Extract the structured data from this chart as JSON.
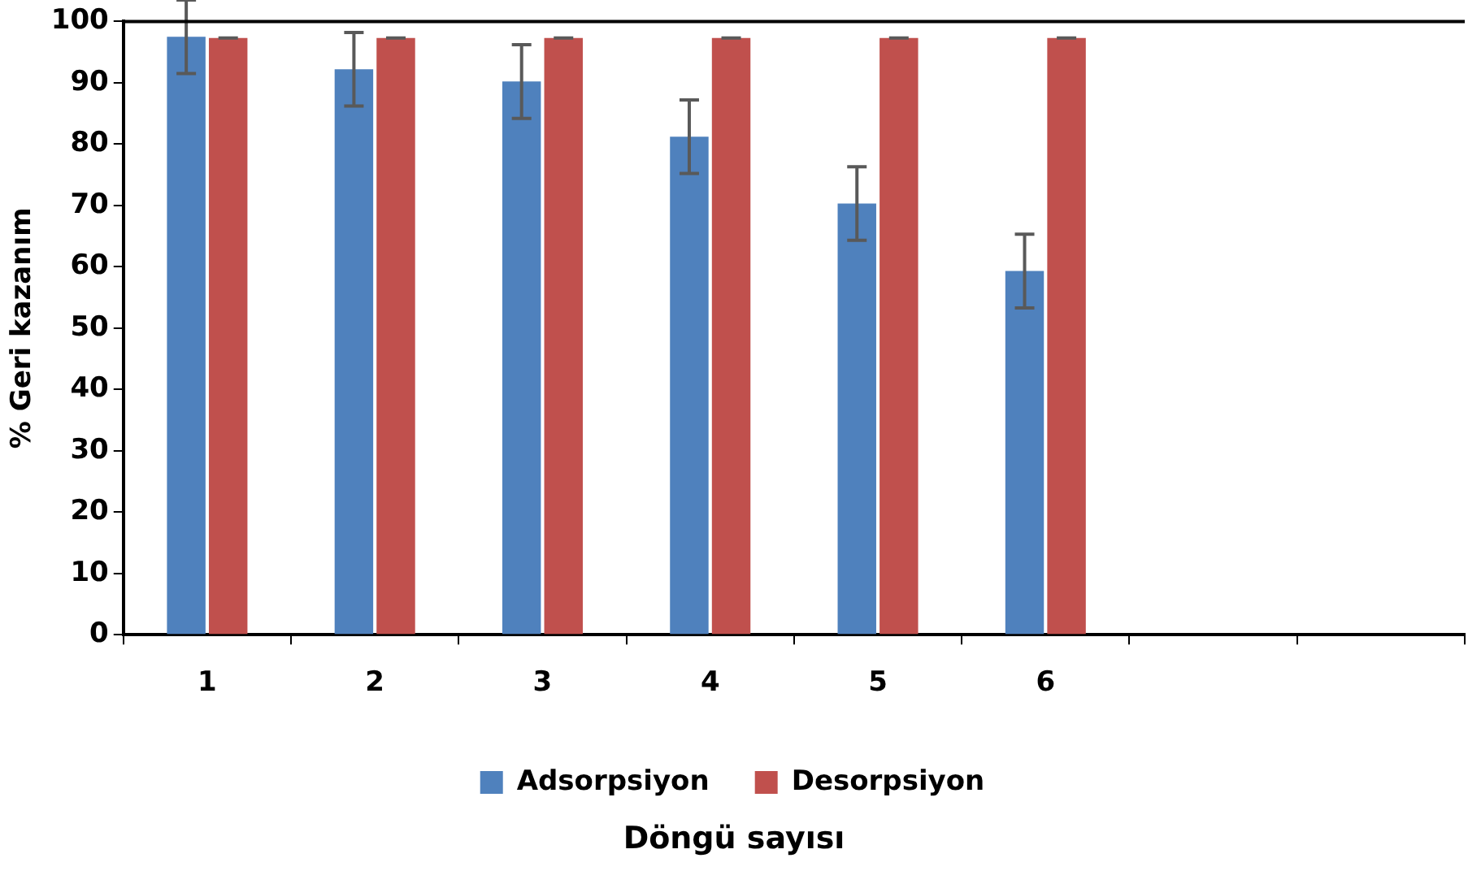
{
  "chart_data": {
    "type": "bar",
    "xlabel": "Döngü sayısı",
    "ylabel": "% Geri kazanım",
    "categories": [
      "1",
      "2",
      "3",
      "4",
      "5",
      "6",
      null,
      null
    ],
    "series": [
      {
        "name": "Adsorpsiyon",
        "color": "#4f81bd",
        "values": [
          97.5,
          92.2,
          90.2,
          81.2,
          70.3,
          59.3,
          null,
          null
        ],
        "errors": [
          6,
          6,
          6,
          6,
          6,
          6,
          null,
          null
        ]
      },
      {
        "name": "Desorpsiyon",
        "color": "#c0504d",
        "values": [
          97.3,
          97.3,
          97.3,
          97.3,
          97.3,
          97.3,
          null,
          null
        ],
        "errors": [
          0,
          0,
          0,
          0,
          0,
          0,
          null,
          null
        ]
      }
    ],
    "ylim": [
      0,
      100
    ],
    "yticks": [
      0,
      10,
      20,
      30,
      40,
      50,
      60,
      70,
      80,
      90,
      100
    ],
    "grid": false,
    "legend": "bottom"
  }
}
